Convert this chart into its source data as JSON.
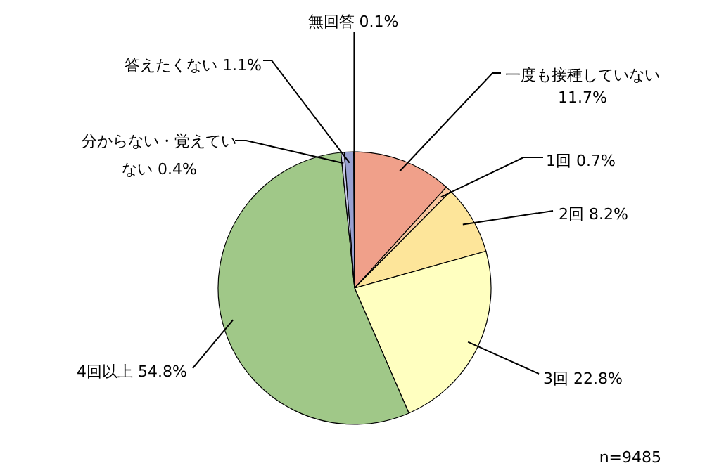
{
  "chart_data": {
    "type": "pie",
    "categories": [
      "一度も接種していない",
      "1回",
      "2回",
      "3回",
      "4回以上",
      "分からない・覚えていない",
      "答えたくない",
      "無回答"
    ],
    "values": [
      11.7,
      0.7,
      8.2,
      22.8,
      54.8,
      0.4,
      1.1,
      0.1
    ],
    "value_labels": [
      "11.7%",
      "0.7%",
      "8.2%",
      "22.8%",
      "54.8%",
      "0.4%",
      "1.1%",
      "0.1%"
    ],
    "colors": [
      "#f0a08a",
      "#f8c8a0",
      "#fde59a",
      "#ffffc0",
      "#a0c888",
      "#c8c8e8",
      "#98a0d0",
      "#6070b0"
    ],
    "annotations": [
      "n=9485"
    ]
  }
}
